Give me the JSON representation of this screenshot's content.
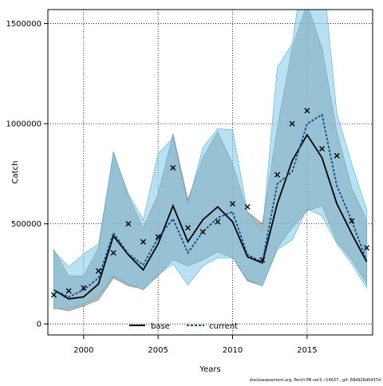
{
  "chart_data": {
    "type": "line",
    "xlabel": "Years",
    "ylabel": "Catch",
    "xlim": [
      1997.6,
      2019.4
    ],
    "ylim": [
      -55000,
      1570000
    ],
    "x_ticks": [
      2000,
      2005,
      2010,
      2015
    ],
    "y_ticks": [
      0,
      500000,
      1000000,
      1500000
    ],
    "grid": true,
    "legend": "bottom-center",
    "footer": "stockassessment.org, Perch PB ver3, r14637 , git: 69d926d0437d",
    "x": [
      1998,
      1999,
      2000,
      2001,
      2002,
      2003,
      2004,
      2005,
      2006,
      2007,
      2008,
      2009,
      2010,
      2011,
      2012,
      2013,
      2014,
      2015,
      2016,
      2017,
      2018,
      2019
    ],
    "observed": {
      "marker": "x",
      "values": [
        145000,
        165000,
        180000,
        265000,
        355000,
        500000,
        410000,
        435000,
        780000,
        480000,
        460000,
        510000,
        600000,
        585000,
        320000,
        745000,
        1000000,
        1065000,
        875000,
        840000,
        515000,
        380000
      ]
    },
    "series": [
      {
        "name": "base",
        "color": "#000000",
        "band_color": "#a0a0a0",
        "values": [
          170000,
          125000,
          135000,
          200000,
          440000,
          345000,
          270000,
          400000,
          590000,
          410000,
          520000,
          585000,
          510000,
          335000,
          305000,
          600000,
          815000,
          945000,
          830000,
          600000,
          450000,
          310000
        ],
        "lower": [
          80000,
          65000,
          90000,
          120000,
          230000,
          190000,
          175000,
          240000,
          320000,
          290000,
          320000,
          360000,
          330000,
          215000,
          190000,
          380000,
          480000,
          565000,
          590000,
          410000,
          320000,
          200000
        ],
        "upper": [
          370000,
          240000,
          240000,
          380000,
          860000,
          640000,
          480000,
          650000,
          950000,
          620000,
          830000,
          960000,
          800000,
          560000,
          500000,
          980000,
          1380000,
          1600000,
          1380000,
          960000,
          680000,
          520000
        ]
      },
      {
        "name": "current",
        "color": "#0b4a8a",
        "band_color": "#7ec8ea",
        "values": [
          170000,
          135000,
          170000,
          230000,
          455000,
          350000,
          295000,
          430000,
          525000,
          355000,
          460000,
          530000,
          560000,
          345000,
          310000,
          700000,
          760000,
          1000000,
          1045000,
          690000,
          515000,
          315000
        ],
        "lower": [
          75000,
          80000,
          100000,
          140000,
          240000,
          200000,
          170000,
          245000,
          300000,
          195000,
          290000,
          330000,
          330000,
          220000,
          190000,
          370000,
          420000,
          575000,
          540000,
          400000,
          300000,
          180000
        ],
        "upper": [
          365000,
          285000,
          350000,
          400000,
          855000,
          650000,
          520000,
          850000,
          930000,
          600000,
          880000,
          975000,
          970000,
          560000,
          460000,
          1280000,
          1400000,
          1900000,
          1800000,
          1050000,
          800000,
          570000
        ]
      }
    ]
  }
}
